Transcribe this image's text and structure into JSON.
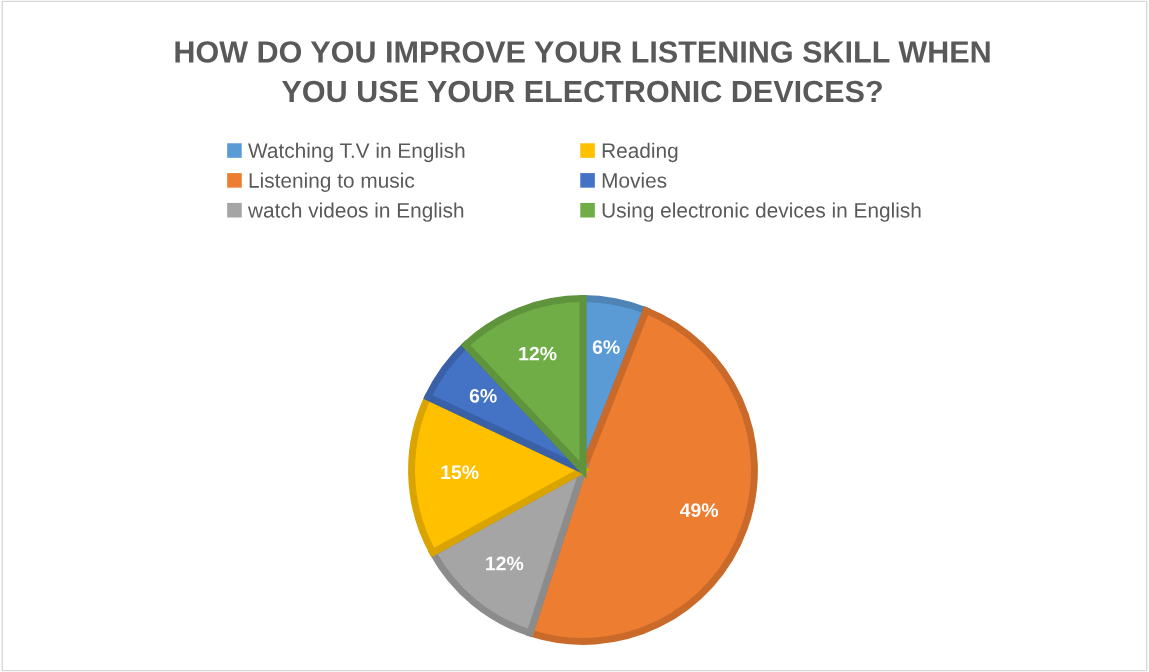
{
  "chart_data": {
    "type": "pie",
    "title": "HOW DO YOU IMPROVE YOUR LISTENING SKILL WHEN\nYOU USE YOUR ELECTRONIC DEVICES?",
    "categories": [
      "Watching T.V in English",
      "Listening to music",
      "watch videos in English",
      "Reading",
      "Movies",
      "Using electronic devices in English"
    ],
    "values": [
      6,
      49,
      12,
      15,
      6,
      12
    ],
    "colors": [
      "#5b9bd5",
      "#ed7d31",
      "#a5a5a5",
      "#ffc000",
      "#4472c4",
      "#70ad47"
    ],
    "value_labels": [
      "6%",
      "49%",
      "12%",
      "15%",
      "6%",
      "12%"
    ],
    "legend": "top"
  }
}
